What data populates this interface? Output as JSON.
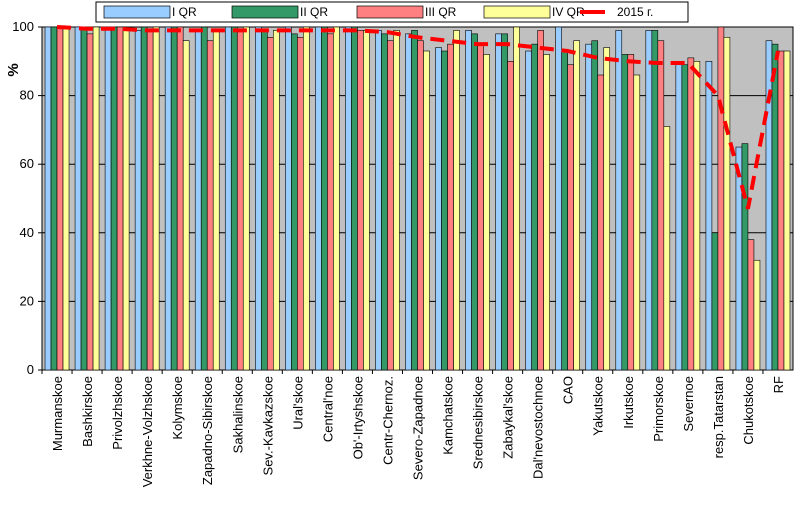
{
  "chart_data": {
    "type": "bar",
    "title": "",
    "xlabel": "",
    "ylabel": "%",
    "ylim": [
      0,
      100
    ],
    "yticks": [
      0,
      20,
      40,
      60,
      80,
      100
    ],
    "grid": true,
    "legend_position": "top",
    "categories": [
      "Murmanskoe",
      "Bashkirskoe",
      "Privolzhskoe",
      "Verkhne-Volzhskoe",
      "Kolymskoe",
      "Zapadno-Sibirskoe",
      "Sakhalinskoe",
      "Sev.-Kavkazskoe",
      "Ural'skoe",
      "Central'noe",
      "Ob'-Irtyshskoe",
      "Centr-Chernoz.",
      "Severo-Zapadnoe",
      "Kamchatskoe",
      "Srednesibirskoe",
      "Zabaykal'skoe",
      "Dal'nevostochnoe",
      "CAO",
      "Yakutskoe",
      "Irkutskoe",
      "Primorskoe",
      "Severnoe",
      "resp.Tatarstan",
      "Chukotskoe",
      "RF"
    ],
    "series": [
      {
        "name": "I QR",
        "color": "#99ccff",
        "values": [
          100,
          100,
          100,
          99,
          100,
          99,
          100,
          100,
          100,
          100,
          100,
          99,
          98,
          94,
          99,
          98,
          93,
          100,
          95,
          99,
          99,
          89,
          90,
          65,
          96
        ]
      },
      {
        "name": "II QR",
        "color": "#339966",
        "values": [
          100,
          100,
          100,
          100,
          100,
          100,
          100,
          99,
          98,
          100,
          100,
          98,
          99,
          93,
          98,
          98,
          95,
          93,
          96,
          92,
          99,
          89,
          40,
          66,
          95
        ]
      },
      {
        "name": "III QR",
        "color": "#ff8080",
        "values": [
          100,
          98,
          100,
          99,
          100,
          96,
          99,
          97,
          97,
          98,
          99,
          96,
          96,
          95,
          95,
          90,
          99,
          89,
          86,
          92,
          96,
          91,
          100,
          38,
          93
        ]
      },
      {
        "name": "IV QR",
        "color": "#ffff99",
        "values": [
          100,
          100,
          99,
          100,
          96,
          99,
          100,
          99,
          100,
          100,
          99,
          99,
          93,
          99,
          92,
          100,
          92,
          96,
          94,
          86,
          71,
          90,
          97,
          32,
          93
        ]
      }
    ],
    "line_series": {
      "name": "2015 г.",
      "color": "#ff0000",
      "values": [
        100,
        99.5,
        99.5,
        99,
        99,
        99,
        99,
        99,
        99,
        99,
        99,
        98.5,
        97,
        96,
        95,
        95,
        94,
        93,
        91,
        90,
        89.5,
        89.5,
        80,
        47,
        93
      ]
    },
    "plot_bg": "#c0c0c0"
  }
}
